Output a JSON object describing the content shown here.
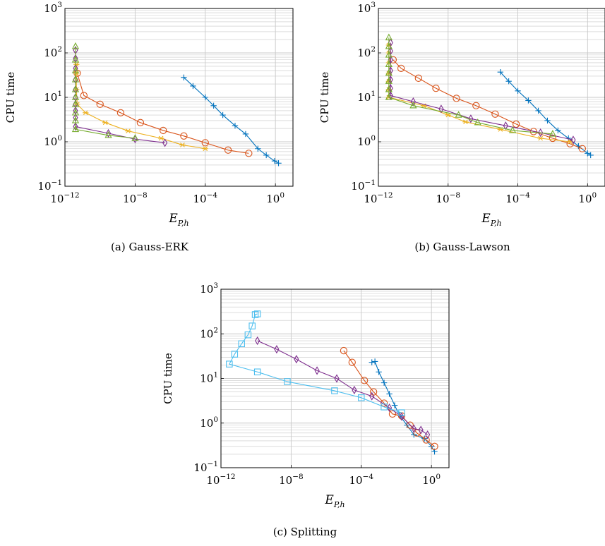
{
  "colors": {
    "blue": "#0072BD",
    "orange": "#D95319",
    "yellow": "#EDB120",
    "purple": "#7E2F8E",
    "green": "#77AC30",
    "cyan": "#4DBEEE"
  },
  "chart_data": [
    {
      "type": "line",
      "caption": "(a)  Gauss-ERK",
      "xscale": "log",
      "yscale": "log",
      "xlim": [
        1e-12,
        10.0
      ],
      "ylim": [
        0.1,
        1000
      ],
      "xlabel": "E",
      "xlabel_sub": "P,h",
      "ylabel": "CPU time",
      "xticks": [
        "10",
        "10",
        "10",
        "10"
      ],
      "xtick_exp": [
        "−12",
        "−8",
        "−4",
        "0"
      ],
      "yticks": [
        "10",
        "10",
        "10",
        "10",
        "10"
      ],
      "ytick_exp": [
        "−1",
        "0",
        "1",
        "2",
        "3"
      ],
      "grid": true,
      "series": [
        {
          "color": "blue",
          "marker": "plus",
          "x": [
            1.5,
            0.9,
            0.3,
            0.1,
            0.02,
            0.005,
            0.001,
            0.0003,
            0.0001,
            2e-05,
            6e-06
          ],
          "y": [
            0.33,
            0.37,
            0.5,
            0.7,
            1.5,
            2.3,
            4,
            6.5,
            10,
            18,
            28
          ]
        },
        {
          "color": "orange",
          "marker": "circle",
          "x": [
            0.03,
            0.002,
            0.0001,
            6e-06,
            4e-07,
            2e-08,
            1.5e-09,
            1e-10,
            1.2e-11,
            5e-12
          ],
          "y": [
            0.55,
            0.65,
            0.95,
            1.35,
            1.8,
            2.7,
            4.5,
            7,
            11,
            35
          ]
        },
        {
          "color": "yellow",
          "marker": "star",
          "x": [
            0.0001,
            5e-06,
            3e-07,
            4e-09,
            2e-10,
            1.5e-11,
            5e-12,
            4.5e-12,
            4.5e-12,
            4.5e-12
          ],
          "y": [
            0.7,
            0.85,
            1.2,
            1.75,
            2.7,
            4.5,
            7,
            15,
            35,
            55
          ]
        },
        {
          "color": "purple",
          "marker": "diamond",
          "x": [
            5e-07,
            1e-08,
            3e-10,
            4e-12,
            4e-12,
            4e-12,
            4e-12,
            4e-12,
            4e-12,
            4e-12,
            4e-12,
            4e-12,
            4e-12
          ],
          "y": [
            0.95,
            1.15,
            1.55,
            2.2,
            3.5,
            5,
            7,
            10,
            15,
            25,
            45,
            75,
            115
          ]
        },
        {
          "color": "green",
          "marker": "triangle",
          "x": [
            1e-08,
            3e-10,
            4e-12,
            4e-12,
            4e-12,
            4e-12,
            4e-12,
            4e-12,
            4e-12,
            4e-12,
            4e-12,
            4e-12
          ],
          "y": [
            1.2,
            1.4,
            1.9,
            3,
            4.5,
            7,
            10,
            15,
            25,
            40,
            70,
            140
          ]
        }
      ]
    },
    {
      "type": "line",
      "caption": "(b)  Gauss-Lawson",
      "xscale": "log",
      "yscale": "log",
      "xlim": [
        1e-12,
        10.0
      ],
      "ylim": [
        0.1,
        1000
      ],
      "xlabel": "E",
      "xlabel_sub": "P,h",
      "ylabel": "CPU time",
      "xticks": [
        "10",
        "10",
        "10",
        "10"
      ],
      "xtick_exp": [
        "−12",
        "−8",
        "−4",
        "0"
      ],
      "yticks": [
        "10",
        "10",
        "10",
        "10",
        "10"
      ],
      "ytick_exp": [
        "−1",
        "0",
        "1",
        "2",
        "3"
      ],
      "grid": true,
      "series": [
        {
          "color": "blue",
          "marker": "plus",
          "x": [
            1.5,
            1,
            0.3,
            0.08,
            0.02,
            0.005,
            0.0015,
            0.0004,
            0.0001,
            3e-05,
            1e-05
          ],
          "y": [
            0.5,
            0.55,
            0.8,
            1.2,
            1.8,
            3,
            5,
            8.5,
            14,
            23,
            37
          ]
        },
        {
          "color": "orange",
          "marker": "circle",
          "x": [
            0.5,
            0.1,
            0.01,
            0.0008,
            8e-05,
            5e-06,
            4e-07,
            3e-08,
            2e-09,
            2e-10,
            2e-11,
            7e-12
          ],
          "y": [
            0.7,
            0.9,
            1.2,
            1.7,
            2.5,
            4.2,
            6.5,
            9.5,
            16,
            27,
            45,
            70
          ]
        },
        {
          "color": "yellow",
          "marker": "star",
          "x": [
            0.1,
            0.002,
            1e-05,
            1e-07,
            1e-08,
            4e-10,
            4e-12,
            4e-12,
            4e-12,
            4e-12,
            4e-12,
            4e-12,
            4e-12
          ],
          "y": [
            1,
            1.2,
            1.9,
            2.8,
            4,
            6.5,
            10,
            15,
            23,
            35,
            60,
            100,
            150
          ]
        },
        {
          "color": "purple",
          "marker": "diamond",
          "x": [
            0.15,
            0.002,
            2e-05,
            2e-07,
            4e-09,
            1e-10,
            5e-12,
            5e-12,
            5e-12,
            5e-12,
            5e-12,
            5e-12,
            5e-12
          ],
          "y": [
            1.1,
            1.6,
            2.3,
            3.3,
            5.5,
            8,
            11,
            16,
            25,
            40,
            70,
            110,
            170
          ]
        },
        {
          "color": "green",
          "marker": "triangle",
          "x": [
            0.01,
            5e-05,
            5e-07,
            4e-08,
            1e-10,
            4e-12,
            4e-12,
            4e-12,
            4e-12,
            4e-12,
            4e-12,
            4e-12,
            4e-12
          ],
          "y": [
            1.5,
            1.8,
            2.7,
            4,
            6.5,
            10,
            15,
            23,
            35,
            55,
            90,
            140,
            220
          ]
        }
      ]
    },
    {
      "type": "line",
      "caption": "(c)  Splitting",
      "xscale": "log",
      "yscale": "log",
      "xlim": [
        1e-12,
        10.0
      ],
      "ylim": [
        0.1,
        1000
      ],
      "xlabel": "E",
      "xlabel_sub": "P,h",
      "ylabel": "CPU time",
      "xticks": [
        "10",
        "10",
        "10",
        "10"
      ],
      "xtick_exp": [
        "−12",
        "−8",
        "−4",
        "0"
      ],
      "yticks": [
        "10",
        "10",
        "10",
        "10",
        "10"
      ],
      "ytick_exp": [
        "−1",
        "0",
        "1",
        "2",
        "3"
      ],
      "grid": true,
      "series": [
        {
          "color": "blue",
          "marker": "plus",
          "x": [
            1.5,
            1,
            0.4,
            0.1,
            0.04,
            0.015,
            0.008,
            0.004,
            0.002,
            0.001,
            0.0006,
            0.0004
          ],
          "y": [
            0.23,
            0.3,
            0.45,
            0.55,
            0.9,
            1.5,
            2.5,
            4.5,
            8,
            14,
            24,
            23
          ]
        },
        {
          "color": "orange",
          "marker": "circle",
          "x": [
            1.5,
            0.5,
            0.15,
            0.06,
            0.02,
            0.006,
            0.002,
            0.0005,
            0.00015,
            3e-05,
            1e-05
          ],
          "y": [
            0.3,
            0.42,
            0.6,
            0.9,
            1.45,
            1.6,
            2.8,
            5,
            9,
            23,
            42
          ]
        },
        {
          "color": "purple",
          "marker": "diamond",
          "x": [
            0.6,
            0.25,
            0.1,
            0.02,
            0.004,
            0.0004,
            4e-05,
            4e-06,
            3e-07,
            2e-08,
            1.5e-09,
            1.2e-10
          ],
          "y": [
            0.55,
            0.7,
            0.75,
            1.4,
            2.2,
            4,
            5.5,
            10,
            15,
            27,
            45,
            70
          ]
        },
        {
          "color": "cyan",
          "marker": "square",
          "x": [
            0.02,
            0.002,
            0.0001,
            3e-06,
            6e-09,
            1.2e-10,
            3e-12,
            6e-12,
            1.5e-11,
            3.5e-11,
            6e-11,
            9e-11,
            1.2e-10
          ],
          "y": [
            1.7,
            2.3,
            3.7,
            5.3,
            8.5,
            14,
            21,
            35,
            60,
            95,
            150,
            270,
            280
          ]
        }
      ]
    }
  ]
}
